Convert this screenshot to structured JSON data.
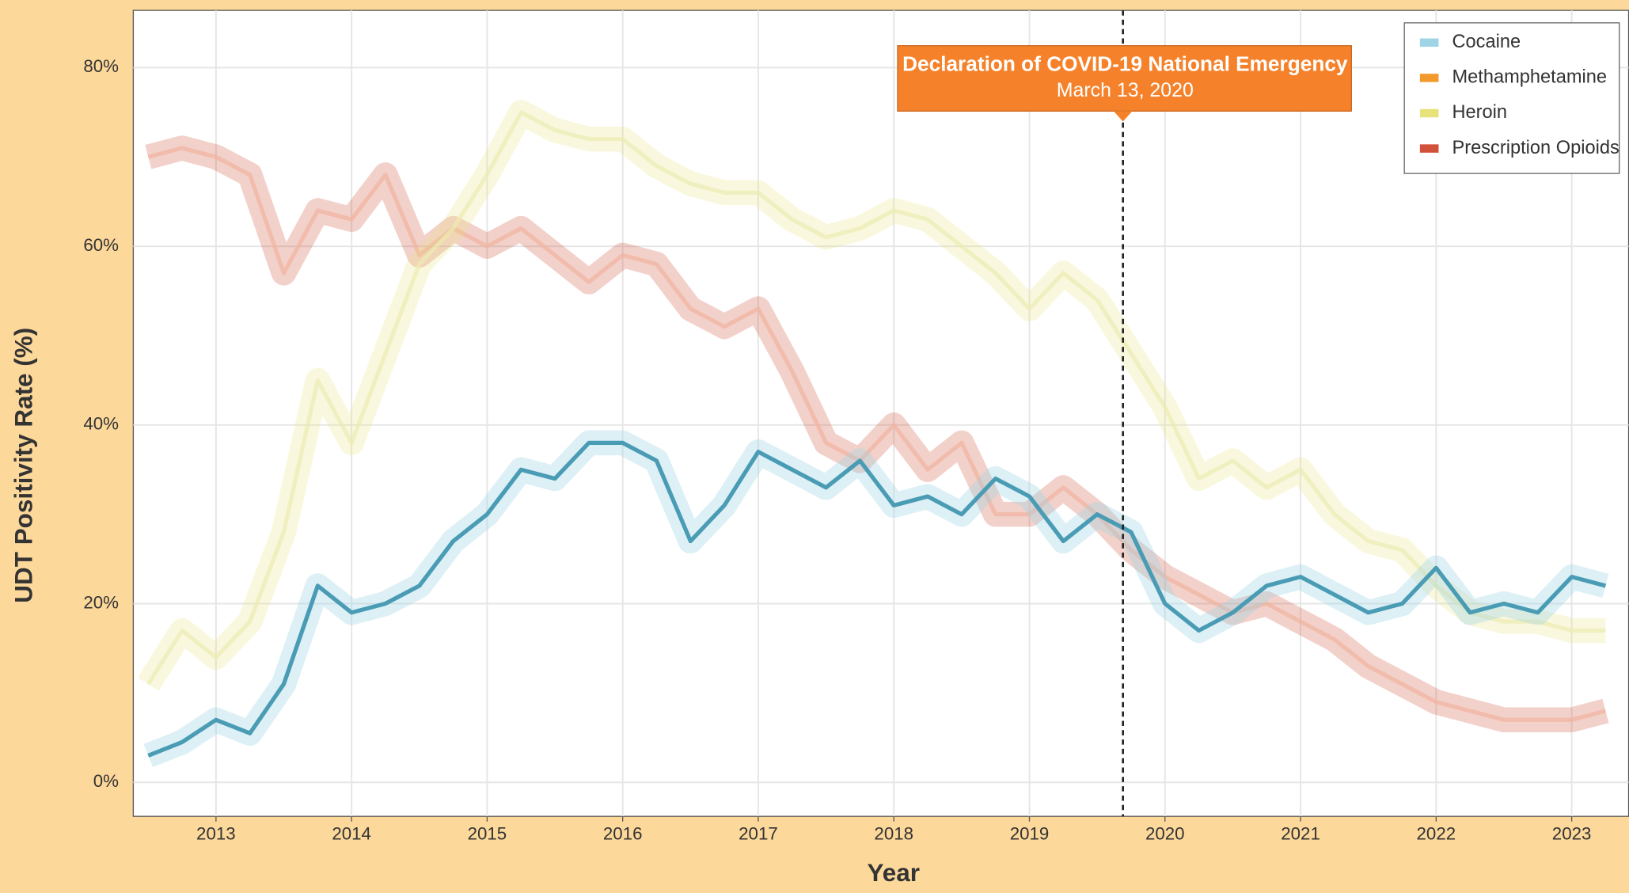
{
  "chart_data": {
    "type": "line",
    "ylabel": "UDT Positivity Rate (%)",
    "xlabel": "Year",
    "x": [
      2013.0,
      2013.25,
      2013.5,
      2013.75,
      2014.0,
      2014.25,
      2014.5,
      2014.75,
      2015.0,
      2015.25,
      2015.5,
      2015.75,
      2016.0,
      2016.25,
      2016.5,
      2016.75,
      2017.0,
      2017.25,
      2017.5,
      2017.75,
      2018.0,
      2018.25,
      2018.5,
      2018.75,
      2019.0,
      2019.25,
      2019.5,
      2019.75,
      2020.0,
      2020.25,
      2020.5,
      2020.75,
      2021.0,
      2021.25,
      2021.5,
      2021.75,
      2022.0,
      2022.25,
      2022.5,
      2022.75,
      2023.0,
      2023.25,
      2023.5,
      2023.75
    ],
    "series": [
      {
        "name": "Prescription Opioids",
        "color": "#d2513a",
        "line_color": "#f0b4a0",
        "opacity": 0.75,
        "values": [
          70,
          71,
          70,
          68,
          57,
          64,
          63,
          68,
          59,
          62,
          60,
          62,
          59,
          56,
          59,
          58,
          53,
          51,
          53,
          46,
          38,
          36,
          40,
          35,
          38,
          30,
          30,
          33,
          30,
          26,
          23,
          21,
          19,
          20,
          18,
          16,
          13,
          11,
          9,
          8,
          7,
          7,
          7,
          8
        ]
      },
      {
        "name": "Heroin",
        "color": "#e7e27a",
        "line_color": "#ecebb0",
        "opacity": 0.7,
        "values": [
          11,
          17,
          14,
          18,
          28,
          45,
          38,
          48,
          58,
          62,
          68,
          75,
          73,
          72,
          72,
          69,
          67,
          66,
          66,
          63,
          61,
          62,
          64,
          63,
          60,
          57,
          53,
          57,
          54,
          48,
          42,
          34,
          36,
          33,
          35,
          30,
          27,
          26,
          22,
          19,
          18,
          18,
          17,
          17
        ]
      },
      {
        "name": "Methamphetamine",
        "color": "#f29a2e",
        "line_color": "#f29a2e",
        "opacity": 1,
        "values": [
          null,
          null,
          null,
          null,
          null,
          null,
          null,
          null,
          null,
          null,
          null,
          null,
          null,
          null,
          null,
          null,
          null,
          null,
          null,
          null,
          null,
          null,
          null,
          null,
          null,
          null,
          null,
          null,
          null,
          null,
          null,
          null,
          null,
          null,
          null,
          null,
          null,
          null,
          null,
          null,
          null,
          null,
          null,
          null
        ]
      },
      {
        "name": "Cocaine",
        "color": "#9fd3e6",
        "line_color": "#4a9cb5",
        "opacity": 1,
        "values": [
          3,
          4.5,
          7,
          5.5,
          11,
          22,
          19,
          20,
          22,
          27,
          30,
          35,
          34,
          38,
          38,
          36,
          27,
          31,
          37,
          35,
          33,
          36,
          31,
          32,
          30,
          34,
          32,
          27,
          30,
          28,
          20,
          17,
          19,
          22,
          23,
          21,
          19,
          20,
          24,
          19,
          20,
          19,
          23,
          22
        ]
      }
    ],
    "legend_order": [
      3,
      2,
      1,
      0
    ],
    "xlim": [
      2012.89,
      2023.92
    ],
    "xticks": [
      {
        "value": 2013.5,
        "label": "2013"
      },
      {
        "value": 2014.5,
        "label": "2014"
      },
      {
        "value": 2015.5,
        "label": "2015"
      },
      {
        "value": 2016.5,
        "label": "2016"
      },
      {
        "value": 2017.5,
        "label": "2017"
      },
      {
        "value": 2018.5,
        "label": "2018"
      },
      {
        "value": 2019.5,
        "label": "2019"
      },
      {
        "value": 2020.5,
        "label": "2020"
      },
      {
        "value": 2021.5,
        "label": "2021"
      },
      {
        "value": 2022.5,
        "label": "2022"
      },
      {
        "value": 2023.5,
        "label": "2023"
      }
    ],
    "ylim": [
      -3.8,
      86.4
    ],
    "yticks": [
      {
        "value": 0,
        "label": "0%"
      },
      {
        "value": 20,
        "label": "20%"
      },
      {
        "value": 40,
        "label": "40%"
      },
      {
        "value": 60,
        "label": "60%"
      },
      {
        "value": 80,
        "label": "80%"
      }
    ],
    "grid": true,
    "legend": "top-right",
    "annotation": {
      "title": "Declaration of COVID-19 National Emergency",
      "date": "March 13, 2020",
      "x": 2020.19,
      "color": "#f5822a"
    }
  }
}
